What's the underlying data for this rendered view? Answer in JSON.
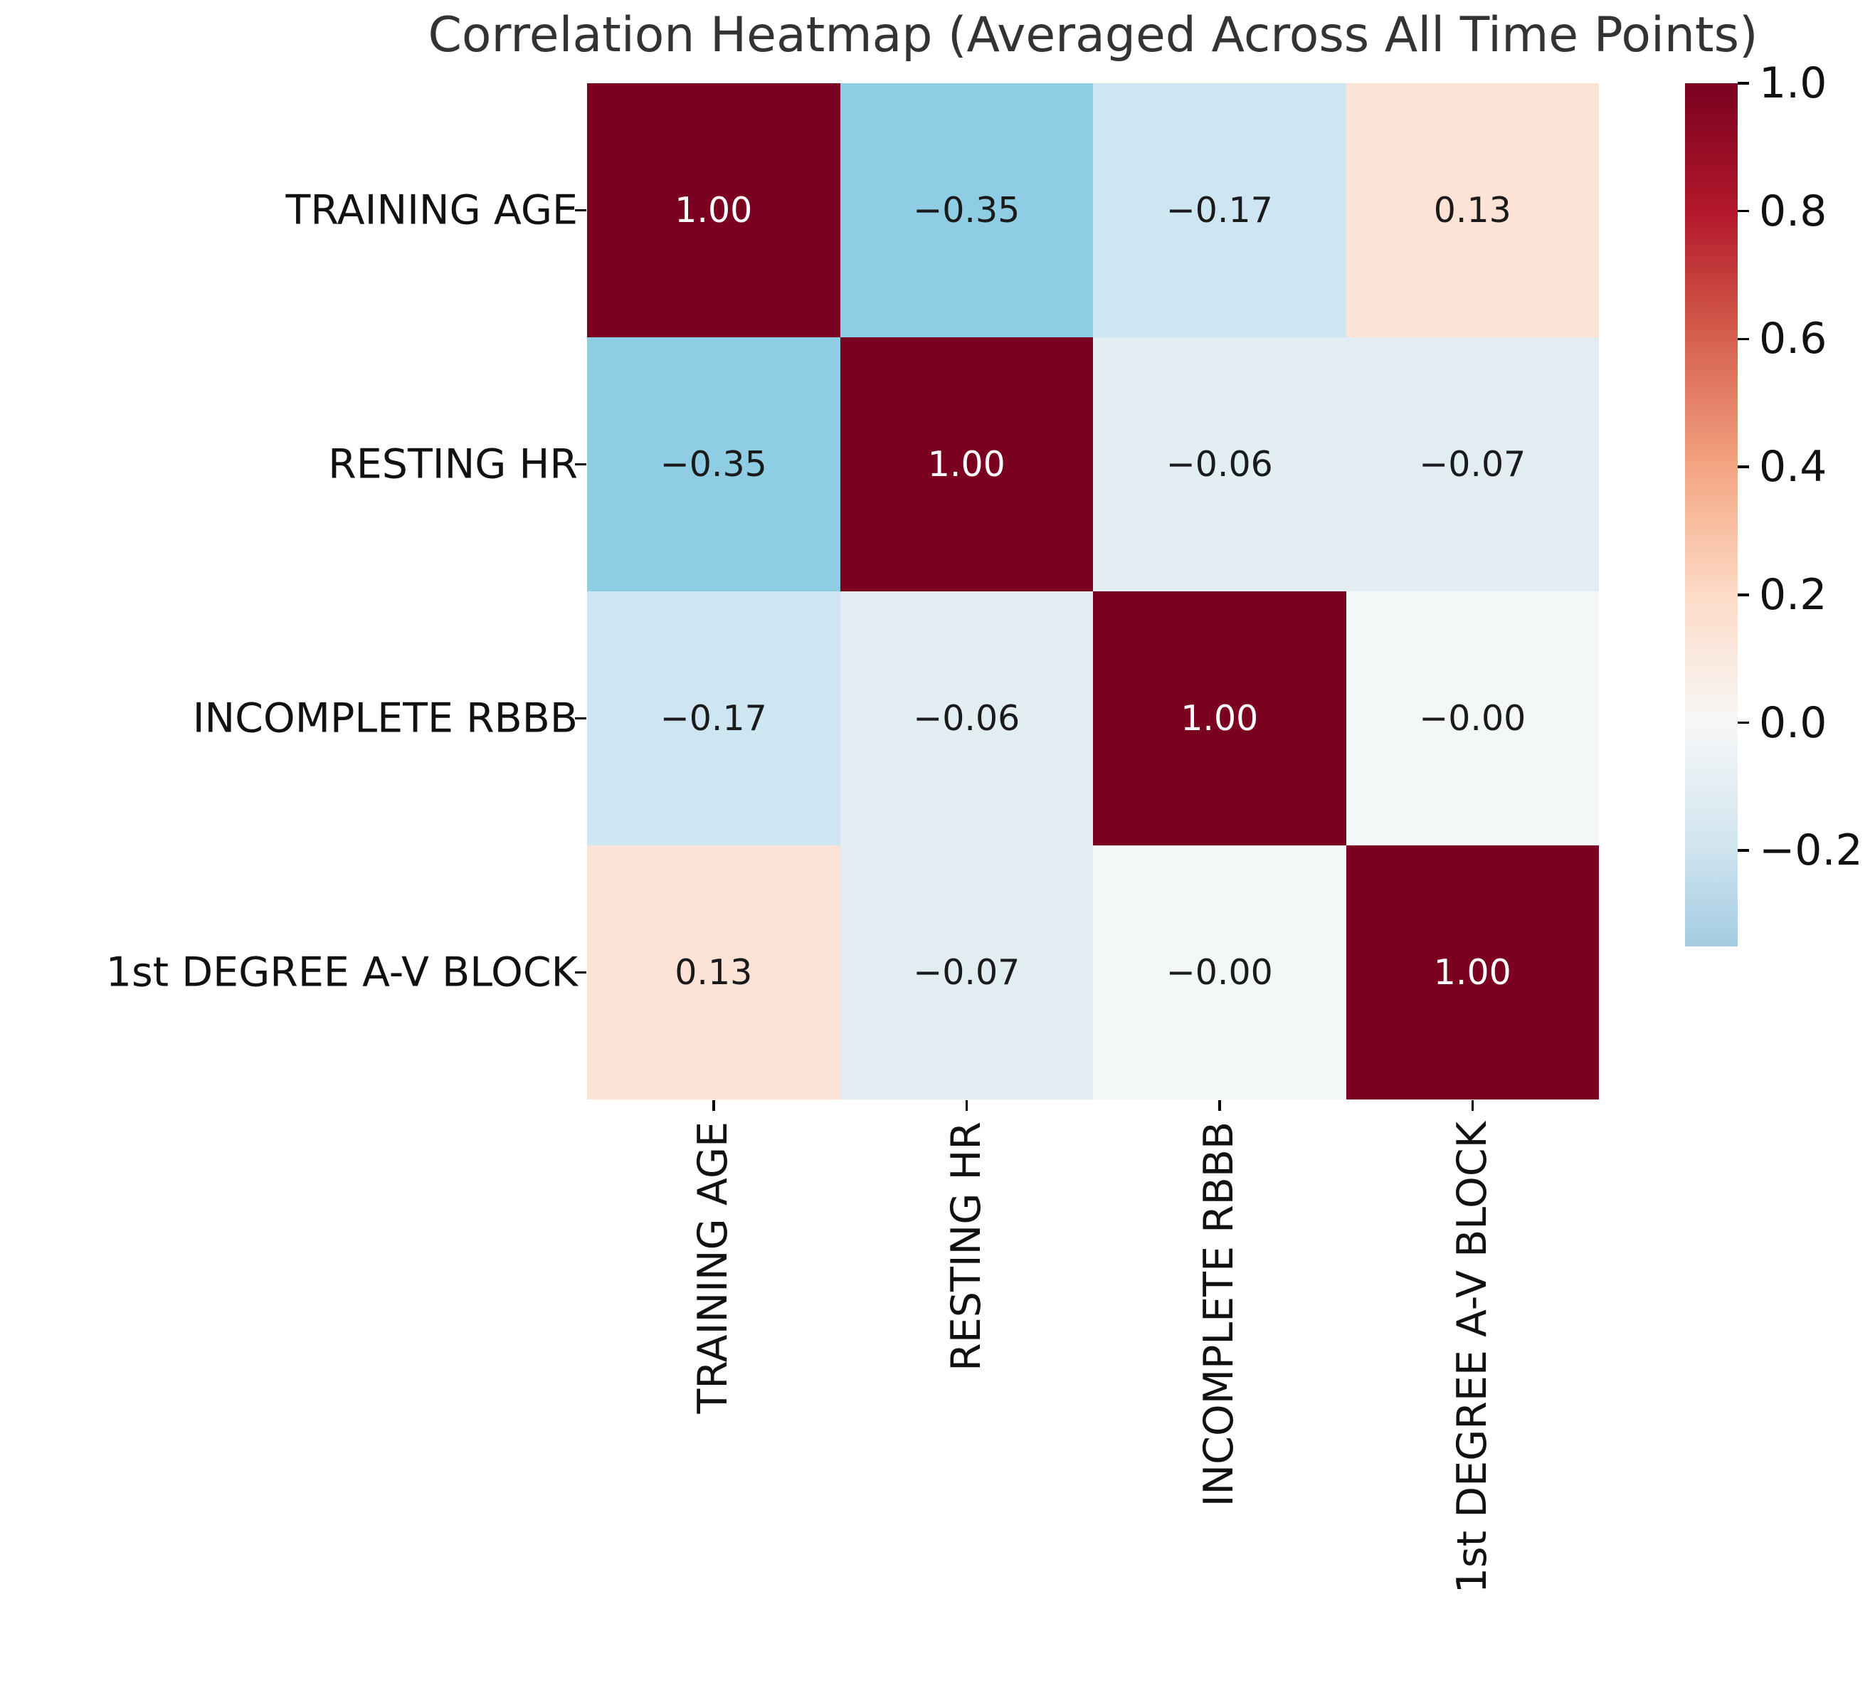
{
  "title": "Correlation Heatmap (Averaged Across All Time Points)",
  "colors": {
    "background": "#ffffff",
    "title_text": "#333333",
    "tick_text": "#111111",
    "tick_mark": "#000000",
    "annotation_on_dark": "#ffffff",
    "annotation_on_light": "#1a1a1a",
    "diagonal_cell": "#7a0120"
  },
  "chart_data": {
    "type": "heatmap",
    "title": "Correlation Heatmap (Averaged Across All Time Points)",
    "categories": [
      "TRAINING AGE",
      "RESTING HR",
      "INCOMPLETE RBBB",
      "1st DEGREE A-V BLOCK"
    ],
    "matrix": [
      [
        1.0,
        -0.35,
        -0.17,
        0.13
      ],
      [
        -0.35,
        1.0,
        -0.06,
        -0.07
      ],
      [
        -0.17,
        -0.06,
        1.0,
        -0.0
      ],
      [
        0.13,
        -0.07,
        -0.0,
        1.0
      ]
    ],
    "cell_labels": [
      [
        "1.00",
        "−0.35",
        "−0.17",
        "0.13"
      ],
      [
        "−0.35",
        "1.00",
        "−0.06",
        "−0.07"
      ],
      [
        "−0.17",
        "−0.06",
        "1.00",
        "−0.00"
      ],
      [
        "0.13",
        "−0.07",
        "−0.00",
        "1.00"
      ]
    ],
    "cell_colors": [
      [
        "#7a0120",
        "#8ecde3",
        "#cde6f2",
        "#fde3d5"
      ],
      [
        "#8ecde3",
        "#7a0120",
        "#e3eef2",
        "#e2edf2"
      ],
      [
        "#cde6f2",
        "#e3eef2",
        "#7a0120",
        "#f3f7f7"
      ],
      [
        "#fde3d5",
        "#e2edf2",
        "#f3f7f7",
        "#7a0120"
      ]
    ],
    "cell_text_colors": [
      [
        "#ffffff",
        "#1a1a1a",
        "#1a1a1a",
        "#1a1a1a"
      ],
      [
        "#1a1a1a",
        "#ffffff",
        "#1a1a1a",
        "#1a1a1a"
      ],
      [
        "#1a1a1a",
        "#1a1a1a",
        "#ffffff",
        "#1a1a1a"
      ],
      [
        "#1a1a1a",
        "#1a1a1a",
        "#1a1a1a",
        "#ffffff"
      ]
    ],
    "grid": false,
    "legend_position": "right-colorbar",
    "colorbar": {
      "vmin": -0.35,
      "vmax": 1.0,
      "center": 0.0,
      "tick_labels": [
        "1.0",
        "0.8",
        "0.6",
        "0.4",
        "0.2",
        "0.0",
        "−0.2"
      ],
      "tick_values": [
        1.0,
        0.8,
        0.6,
        0.4,
        0.2,
        0.0,
        -0.2
      ],
      "gradient": [
        {
          "pct": 0.0,
          "color": "#7a0120"
        },
        {
          "pct": 14.8,
          "color": "#b2182b"
        },
        {
          "pct": 29.6,
          "color": "#d6604d"
        },
        {
          "pct": 44.4,
          "color": "#f4a582"
        },
        {
          "pct": 59.3,
          "color": "#fddbc7"
        },
        {
          "pct": 74.1,
          "color": "#f7f7f7"
        },
        {
          "pct": 88.9,
          "color": "#cfe4ef"
        },
        {
          "pct": 100.0,
          "color": "#a3cce2"
        }
      ]
    }
  }
}
